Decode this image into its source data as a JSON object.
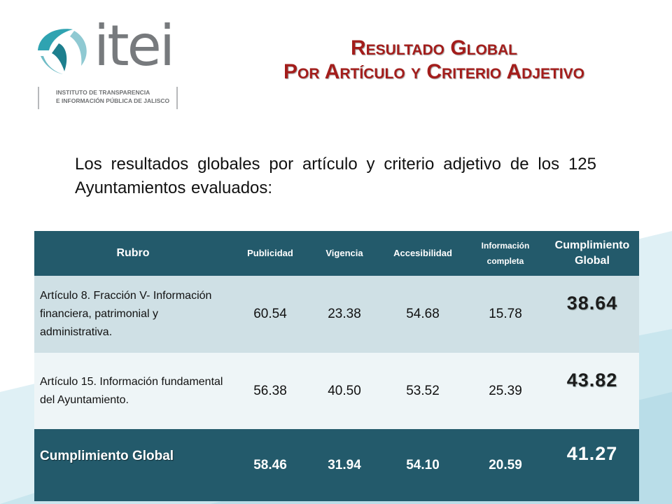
{
  "colors": {
    "header_bg": "#235a6b",
    "row1_bg": "#cfe0e5",
    "row2_bg": "#eef5f7",
    "title": "#a31d1b",
    "logo_accent": "#2fa3b1"
  },
  "logo": {
    "word": "itei",
    "subtitle_line1": "INSTITUTO DE TRANSPARENCIA",
    "subtitle_line2": "E INFORMACIÓN PÚBLICA DE JALISCO"
  },
  "title": {
    "line1": "Resultado Global",
    "line2": "Por Artículo y Criterio Adjetivo"
  },
  "intro": "Los resultados globales por artículo y criterio adjetivo de los 125 Ayuntamientos evaluados:",
  "table": {
    "headers": [
      "Rubro",
      "Publicidad",
      "Vigencia",
      "Accesibilidad",
      "Información completa",
      "Cumplimiento Global"
    ],
    "rows": [
      {
        "rubro": "Artículo 8. Fracción V- Información financiera, patrimonial y administrativa.",
        "values": [
          "60.54",
          "23.38",
          "54.68",
          "15.78"
        ],
        "global": "38.64"
      },
      {
        "rubro": "Artículo 15. Información fundamental del Ayuntamiento.",
        "values": [
          "56.38",
          "40.50",
          "53.52",
          "25.39"
        ],
        "global": "43.82"
      }
    ],
    "total": {
      "rubro": "Cumplimiento Global",
      "values": [
        "58.46",
        "31.94",
        "54.10",
        "20.59"
      ],
      "global": "41.27"
    }
  }
}
